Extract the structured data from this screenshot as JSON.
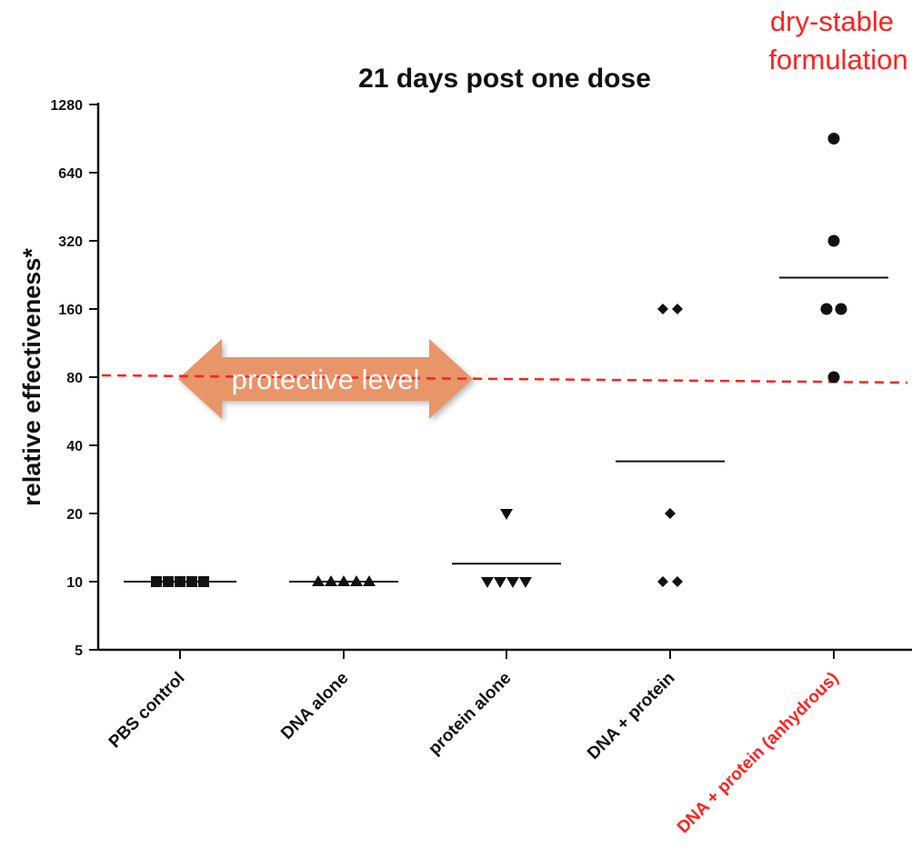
{
  "chart_data": {
    "type": "scatter",
    "title": "21 days post one dose",
    "ylabel": "relative effectiveness*",
    "xlabel": "",
    "yscale": "log2",
    "ylim": [
      5,
      1280
    ],
    "yticks": [
      5,
      10,
      20,
      40,
      80,
      160,
      320,
      640,
      1280
    ],
    "ytick_labels": [
      "5",
      "10",
      "20",
      "40",
      "80",
      "160",
      "320",
      "640",
      "1280"
    ],
    "categories": [
      "PBS control",
      "DNA alone",
      "protein alone",
      "DNA + protein",
      "DNA + protein (anhydrous)"
    ],
    "highlight_category": "DNA + protein (anhydrous)",
    "highlight_color": "#ff2020",
    "groups": [
      {
        "category": "PBS control",
        "marker": "square",
        "values": [
          10,
          10,
          10,
          10,
          10
        ],
        "mean": 10
      },
      {
        "category": "DNA alone",
        "marker": "triangle-up",
        "values": [
          10,
          10,
          10,
          10,
          10
        ],
        "mean": 10
      },
      {
        "category": "protein alone",
        "marker": "triangle-down",
        "values": [
          20,
          10,
          10,
          10,
          10
        ],
        "mean": 12
      },
      {
        "category": "DNA + protein",
        "marker": "diamond",
        "values": [
          160,
          160,
          20,
          10,
          10
        ],
        "mean": 34
      },
      {
        "category": "DNA + protein (anhydrous)",
        "marker": "circle",
        "values": [
          905,
          320,
          160,
          160,
          80
        ],
        "mean": 220
      }
    ],
    "reference_line": {
      "value": 80,
      "color": "#ff2020",
      "style": "dashed"
    },
    "annotations": {
      "protective_level": "protective level",
      "arrow_color": "#e8956a",
      "dry_stable_line1": "dry-stable",
      "dry_stable_line2": "formulation"
    },
    "grid": false
  }
}
